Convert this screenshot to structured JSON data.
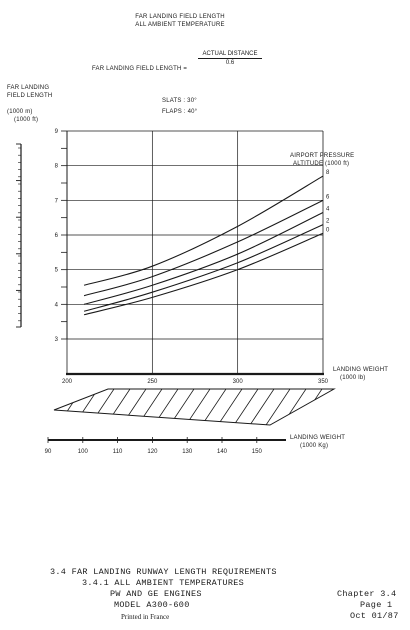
{
  "header": {
    "title_line1": "FAR LANDING FIELD LENGTH",
    "title_line2": "ALL AMBIENT TEMPERATURE",
    "formula_left": "FAR LANDING FIELD LENGTH =",
    "formula_numerator": "ACTUAL DISTANCE",
    "formula_denominator": "0.6"
  },
  "chart_data": {
    "type": "line",
    "ylabel_line1": "FAR LANDING",
    "ylabel_line2": "FIELD LENGTH",
    "y_unit_m": "(1000 m)",
    "y_unit_ft": "(1000 ft)",
    "conditions": [
      "SLATS : 30°",
      "FLAPS : 40°"
    ],
    "legend_title_line1": "AIRPORT PRESSURE",
    "legend_title_line2": "ALTITUDE (1000 ft)",
    "xlabel_line1": "LANDING WEIGHT",
    "xlabel_line2": "(1000 lb)",
    "xlim": [
      200,
      350
    ],
    "ylim": [
      3,
      9
    ],
    "x_ticks": [
      200,
      250,
      300,
      350
    ],
    "y_ticks": [
      3,
      4,
      5,
      6,
      7,
      8,
      9
    ],
    "grid": true,
    "series": [
      {
        "name": "8",
        "x": [
          210,
          250,
          300,
          350
        ],
        "y": [
          4.55,
          5.1,
          6.25,
          7.7
        ]
      },
      {
        "name": "6",
        "x": [
          210,
          250,
          300,
          350
        ],
        "y": [
          4.25,
          4.8,
          5.8,
          7.0
        ]
      },
      {
        "name": "4",
        "x": [
          210,
          250,
          300,
          350
        ],
        "y": [
          4.0,
          4.55,
          5.45,
          6.65
        ]
      },
      {
        "name": "2",
        "x": [
          210,
          250,
          300,
          350
        ],
        "y": [
          3.8,
          4.35,
          5.2,
          6.3
        ]
      },
      {
        "name": "0",
        "x": [
          210,
          250,
          300,
          350
        ],
        "y": [
          3.7,
          4.2,
          5.0,
          6.05
        ]
      }
    ],
    "kg_scale": {
      "label_line1": "LANDING WEIGHT",
      "label_line2": "(1000 Kg)",
      "ticks": [
        90,
        100,
        110,
        120,
        130,
        140,
        150
      ]
    }
  },
  "footer": {
    "line1": "3.4 FAR  LANDING RUNWAY LENGTH REQUIREMENTS",
    "line2": "3.4.1 ALL AMBIENT TEMPERATURES",
    "line3": "PW AND GE ENGINES",
    "line4": "MODEL A300-600",
    "chapter": "Chapter 3.4",
    "page": "Page 1",
    "date": "Oct 01/87",
    "printed": "Printed in France"
  }
}
